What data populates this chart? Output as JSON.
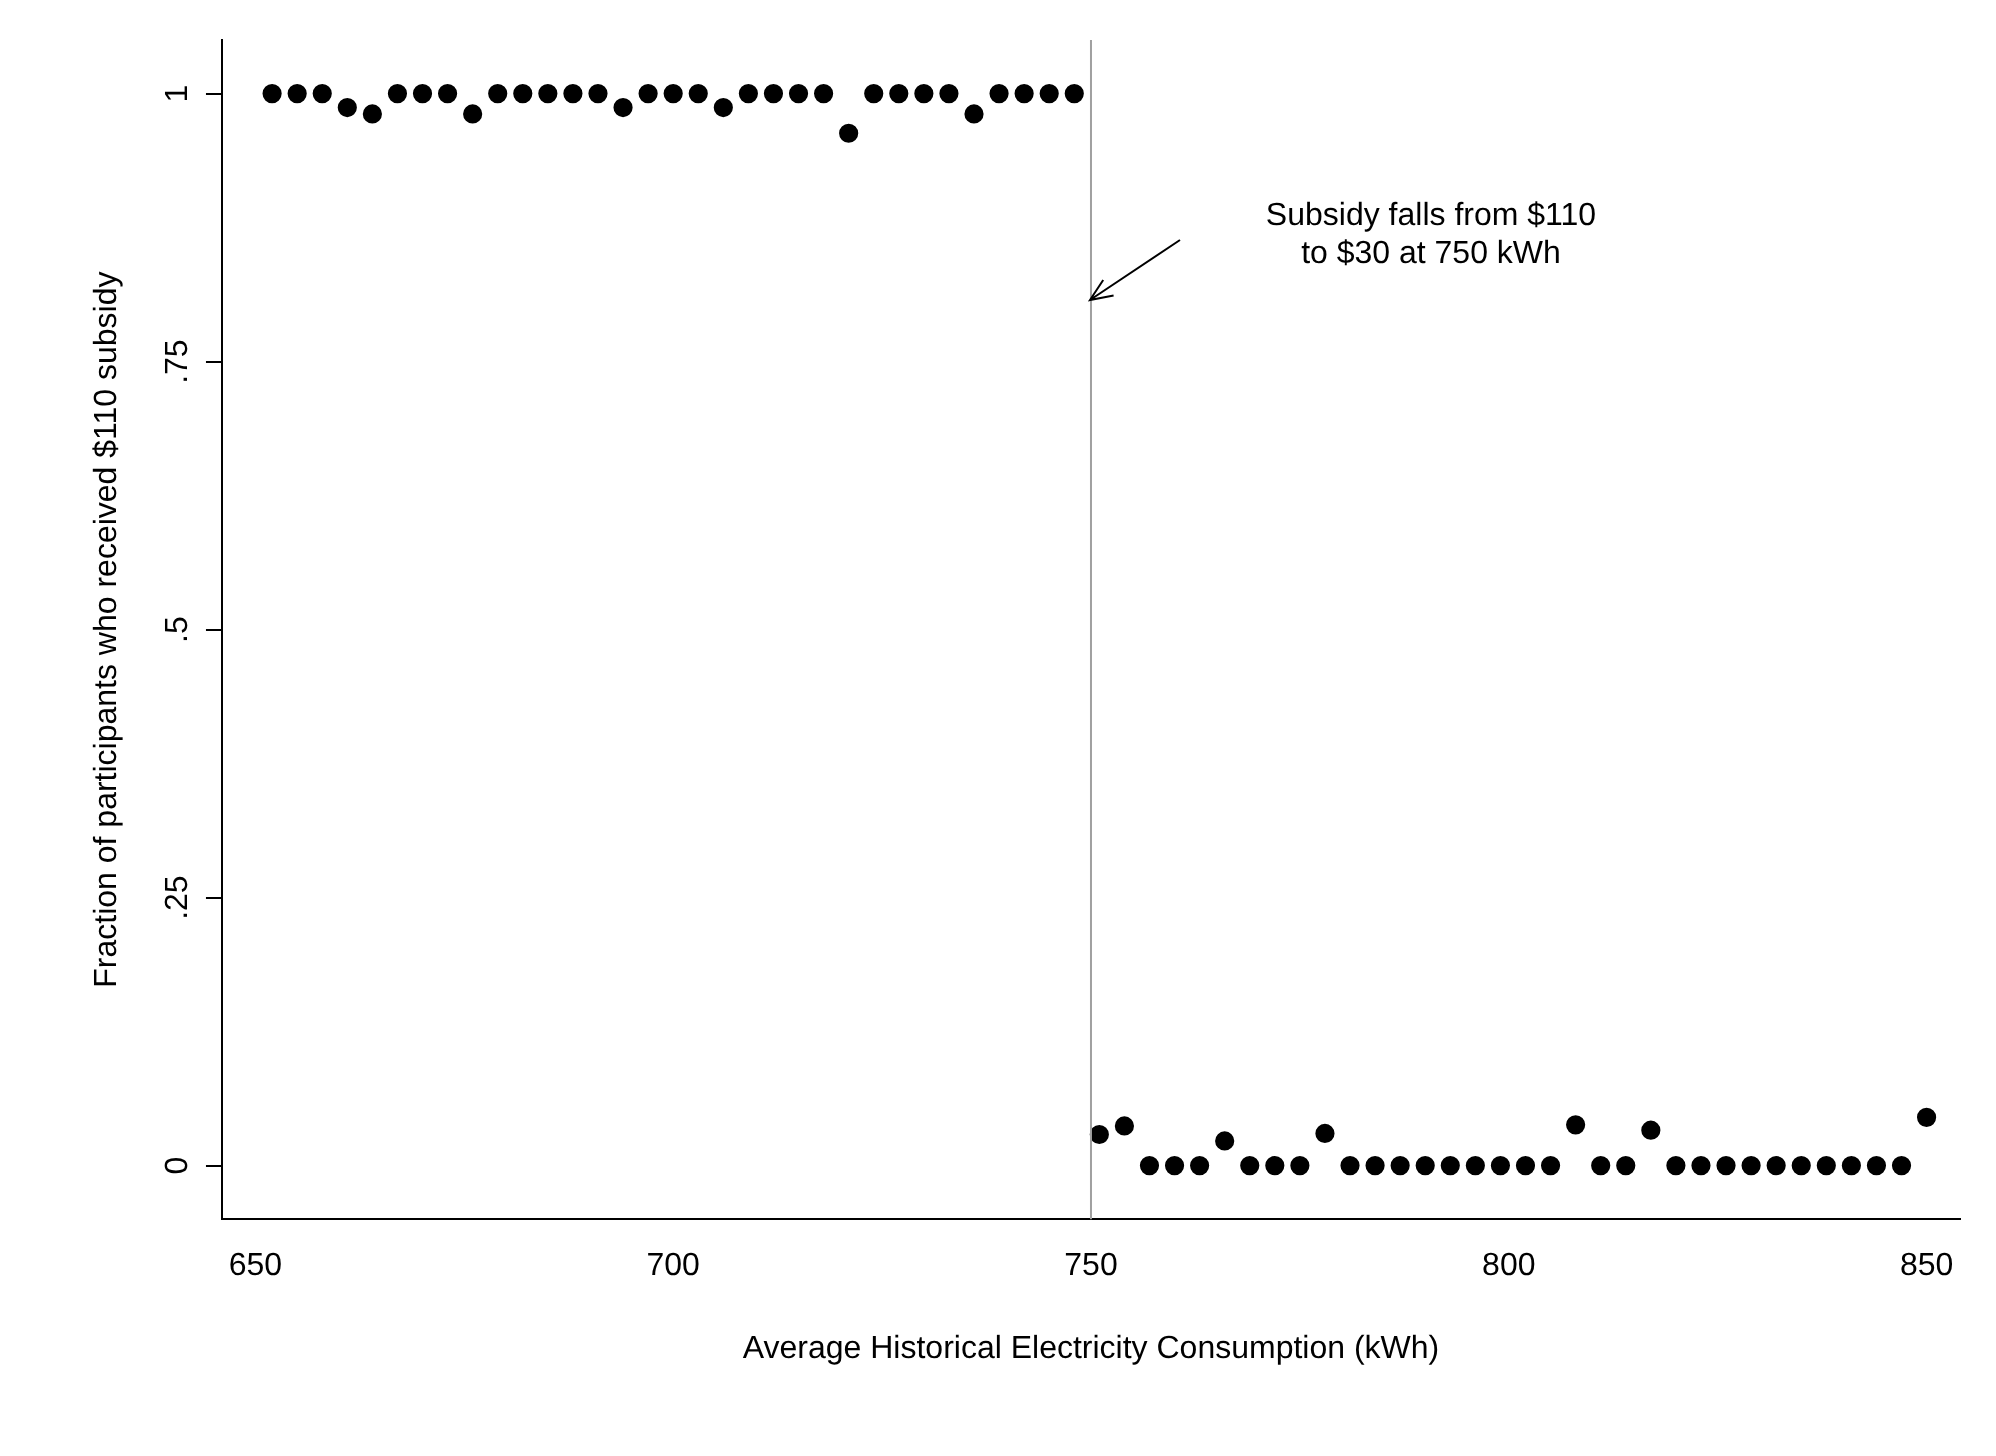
{
  "chart_data": {
    "type": "scatter",
    "xlabel": "Average Historical Electricity Consumption (kWh)",
    "ylabel": "Fraction of participants who received $110 subsidy",
    "series": [
      {
        "color": "#000000",
        "x": [
          652,
          655,
          658,
          661,
          664,
          667,
          670,
          673,
          676,
          679,
          682,
          685,
          688,
          691,
          694,
          697,
          700,
          703,
          706,
          709,
          712,
          715,
          718,
          721,
          724,
          727,
          730,
          733,
          736,
          739,
          742,
          745,
          748
        ],
        "values": [
          1,
          1,
          1,
          0.987,
          0.981,
          1,
          1,
          1,
          0.981,
          1,
          1,
          1,
          1,
          1,
          0.987,
          1,
          1,
          1,
          0.987,
          1,
          1,
          1,
          1,
          0.963,
          1,
          1,
          1,
          1,
          0.981,
          1,
          1,
          1,
          1
        ]
      },
      {
        "color": "#000000",
        "x": [
          751,
          754,
          757,
          760,
          763,
          766,
          769,
          772,
          775,
          778,
          781,
          784,
          787,
          790,
          793,
          796,
          799,
          802,
          805,
          808,
          811,
          814,
          817,
          820,
          823,
          826,
          829,
          832,
          835,
          838,
          841,
          844,
          847,
          850
        ],
        "values": [
          0.029,
          0.037,
          0,
          0,
          0,
          0.023,
          0,
          0,
          0,
          0.03,
          0,
          0,
          0,
          0,
          0,
          0,
          0,
          0,
          0,
          0.038,
          0,
          0,
          0.033,
          0,
          0,
          0,
          0,
          0,
          0,
          0,
          0,
          0,
          0,
          0.045
        ]
      }
    ],
    "xlim": [
      646,
      854
    ],
    "xticks": [
      650,
      700,
      750,
      800,
      850
    ],
    "ylim": [
      -0.05,
      1.05
    ],
    "yticks": [
      0,
      {
        "value": 0.25,
        "label": ".25"
      },
      {
        "value": 0.5,
        "label": ".5"
      },
      {
        "value": 0.75,
        "label": ".75"
      },
      1
    ],
    "ref_lines": [
      {
        "axis": "x",
        "value": 750,
        "color": "#a0a0a0"
      }
    ],
    "annotations": [
      "Subsidy falls from $110\nto $30 at 750 kWh"
    ],
    "marker": "circle",
    "grid": false,
    "legend": false
  }
}
